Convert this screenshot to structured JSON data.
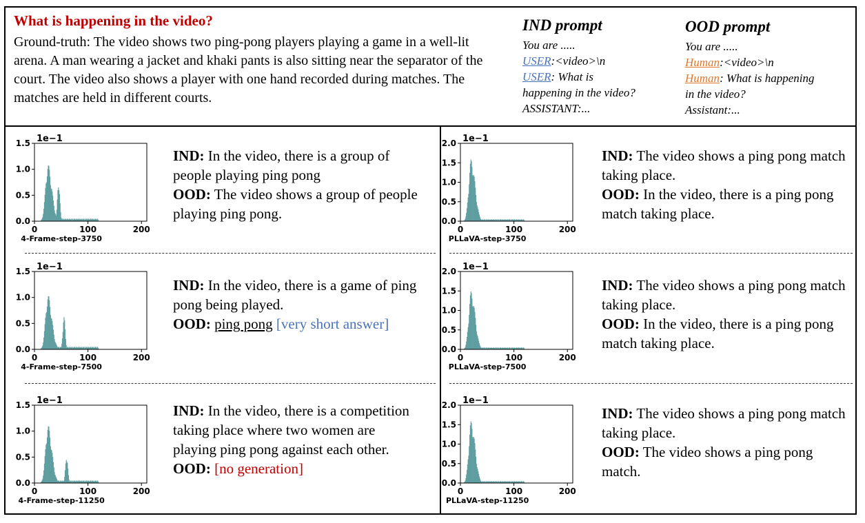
{
  "header": {
    "question": "What is happening in the video?",
    "ground_truth": "Ground-truth: The video shows two ping-pong players playing a game in a well-lit arena. A man wearing a jacket and khaki pants is also sitting near the separator of the court. The video also shows a player with one hand recorded during matches. The matches are held in different courts."
  },
  "ind_prompt": {
    "title": "IND prompt",
    "line1": "You are .....",
    "user_role": "USER",
    "line2_rest": ":<video>\\n",
    "line3_rest": ": What is",
    "line4": "happening in the video?",
    "line5": "ASSISTANT:..."
  },
  "ood_prompt": {
    "title": "OOD prompt",
    "line1": "You are .....",
    "user_role": "Human",
    "line2_rest": ":<video>\\n",
    "line3_rest": ": What is happening",
    "line4": "in the video?",
    "line5": "Assistant:..."
  },
  "labels": {
    "ind": "IND:",
    "ood": "OOD:"
  },
  "panels": [
    {
      "ind_text": "In the video, there is a group of people playing ping pong",
      "ood_text": "The video shows a group of people playing ping pong."
    },
    {
      "ind_text": "The video shows a ping pong match taking place.",
      "ood_text": "In the video, there is a ping pong match taking place."
    },
    {
      "ind_text": "In the video, there is a game of ping pong being played.",
      "ood_text": "ping pong",
      "ood_note": "[very short answer]"
    },
    {
      "ind_text": "The video shows a ping pong match taking place.",
      "ood_text": "In the video, there is a ping pong match taking place."
    },
    {
      "ind_text": "In the video, there is a competition taking place where two women are playing ping pong against each other.",
      "ood_text": "",
      "ood_note": "[no generation]"
    },
    {
      "ind_text": "The video shows a ping pong match taking place.",
      "ood_text": "The video shows a ping pong match."
    }
  ],
  "chart_data": [
    {
      "type": "bar",
      "xlabel": "4-Frame-step-3750",
      "multiplier": "1e−1",
      "xlim": [
        0,
        210
      ],
      "ylim": [
        0,
        1.5
      ],
      "xticks": [
        "0",
        "100",
        "200"
      ],
      "yticks": [
        "0.0",
        "0.5",
        "1.0",
        "1.5"
      ],
      "color": "#5f9ea0",
      "peaks": [
        {
          "x": 25,
          "height": 1.1
        },
        {
          "x": 45,
          "height": 0.8
        }
      ]
    },
    {
      "type": "bar",
      "xlabel": "PLLaVA-step-3750",
      "multiplier": "1e−1",
      "xlim": [
        0,
        210
      ],
      "ylim": [
        0,
        2.0
      ],
      "xticks": [
        "0",
        "100",
        "200"
      ],
      "yticks": [
        "0.0",
        "0.5",
        "1.0",
        "1.5",
        "2.0"
      ],
      "color": "#5f9ea0",
      "peaks": [
        {
          "x": 20,
          "height": 1.6
        }
      ]
    },
    {
      "type": "bar",
      "xlabel": "4-Frame-step-7500",
      "multiplier": "1e−1",
      "xlim": [
        0,
        210
      ],
      "ylim": [
        0,
        1.5
      ],
      "xticks": [
        "0",
        "100",
        "200"
      ],
      "yticks": [
        "0.0",
        "0.5",
        "1.0",
        "1.5"
      ],
      "color": "#5f9ea0",
      "peaks": [
        {
          "x": 25,
          "height": 1.05
        },
        {
          "x": 55,
          "height": 0.65
        }
      ]
    },
    {
      "type": "bar",
      "xlabel": "PLLaVA-step-7500",
      "multiplier": "1e−1",
      "xlim": [
        0,
        210
      ],
      "ylim": [
        0,
        2.0
      ],
      "xticks": [
        "0",
        "100",
        "200"
      ],
      "yticks": [
        "0.0",
        "0.5",
        "1.0",
        "1.5",
        "2.0"
      ],
      "color": "#5f9ea0",
      "peaks": [
        {
          "x": 20,
          "height": 1.5
        }
      ]
    },
    {
      "type": "bar",
      "xlabel": "4-Frame-step-11250",
      "multiplier": "1e−1",
      "xlim": [
        0,
        210
      ],
      "ylim": [
        0,
        1.5
      ],
      "xticks": [
        "0",
        "100",
        "200"
      ],
      "yticks": [
        "0.0",
        "0.5",
        "1.0",
        "1.5"
      ],
      "color": "#5f9ea0",
      "peaks": [
        {
          "x": 25,
          "height": 1.12
        },
        {
          "x": 60,
          "height": 0.55
        }
      ]
    },
    {
      "type": "bar",
      "xlabel": "PLLaVA-step-11250",
      "multiplier": "1e−1",
      "xlim": [
        0,
        210
      ],
      "ylim": [
        0,
        2.0
      ],
      "xticks": [
        "0",
        "100",
        "200"
      ],
      "yticks": [
        "0.0",
        "0.5",
        "1.0",
        "1.5",
        "2.0"
      ],
      "color": "#5f9ea0",
      "peaks": [
        {
          "x": 20,
          "height": 1.6
        }
      ]
    }
  ]
}
